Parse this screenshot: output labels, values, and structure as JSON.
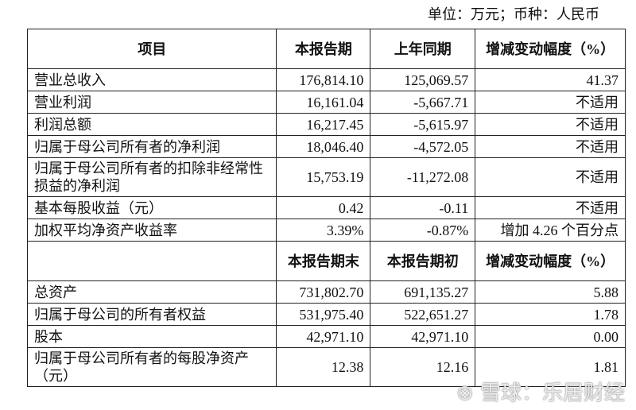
{
  "unit_note": "单位：万元；币种：人民币",
  "header1": [
    "项目",
    "本报告期",
    "上年同期",
    "增减变动幅度（%）"
  ],
  "rows1": [
    [
      "营业总收入",
      "176,814.10",
      "125,069.57",
      "41.37"
    ],
    [
      "营业利润",
      "16,161.04",
      "-5,667.71",
      "不适用"
    ],
    [
      "利润总额",
      "16,217.45",
      "-5,615.97",
      "不适用"
    ],
    [
      "归属于母公司所有者的净利润",
      "18,046.40",
      "-4,572.05",
      "不适用"
    ],
    [
      "归属于母公司所有者的扣除非经常性损益的净利润",
      "15,753.19",
      "-11,272.08",
      "不适用"
    ],
    [
      "基本每股收益（元）",
      "0.42",
      "-0.11",
      "不适用"
    ],
    [
      "加权平均净资产收益率",
      "3.39%",
      "-0.87%",
      "增加 4.26 个百分点"
    ]
  ],
  "header2": [
    "",
    "本报告期末",
    "本报告期初",
    "增减变动幅度（%）"
  ],
  "rows2": [
    [
      "总资产",
      "731,802.70",
      "691,135.27",
      "5.88"
    ],
    [
      "归属于母公司的所有者权益",
      "531,975.40",
      "522,651.27",
      "1.78"
    ],
    [
      "股本",
      "42,971.10",
      "42,971.10",
      "0.00"
    ],
    [
      "归属于母公司所有者的每股净资产（元）",
      "12.38",
      "12.16",
      "1.81"
    ]
  ],
  "watermark": "雪球：乐居财经"
}
